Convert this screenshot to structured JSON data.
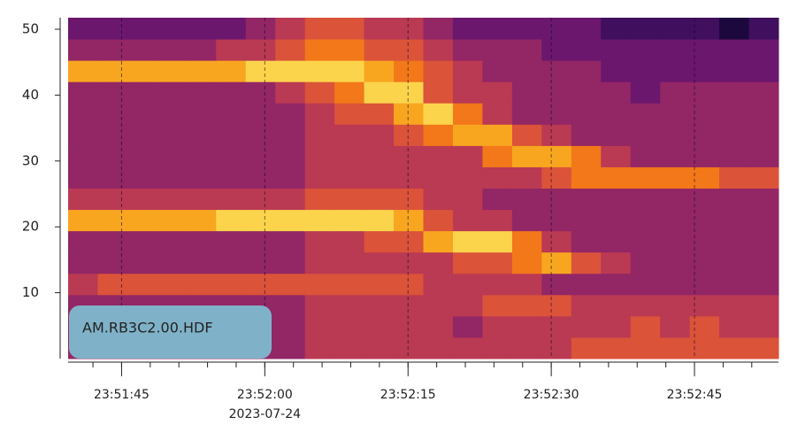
{
  "chart_data": {
    "type": "spectrogram",
    "annotation": "AM.RB3C2.00.HDF",
    "offset_label": "2023-07-24",
    "xlim": [
      85899.4,
      85973.8
    ],
    "xticks": [
      {
        "value": 85905,
        "label": "23:51:45"
      },
      {
        "value": 85920,
        "label": "23:52:00"
      },
      {
        "value": 85935,
        "label": "23:52:15"
      },
      {
        "value": 85950,
        "label": "23:52:30"
      },
      {
        "value": 85965,
        "label": "23:52:45"
      }
    ],
    "xminorticks": [
      85902,
      85905,
      85908,
      85911,
      85914,
      85917,
      85920,
      85923,
      85926,
      85929,
      85932,
      85935,
      85938,
      85941,
      85944,
      85947,
      85950,
      85953,
      85956,
      85959,
      85962,
      85965,
      85968,
      85971
    ],
    "ylim": [
      0,
      51.75
    ],
    "yticks": [
      10,
      20,
      30,
      40,
      50
    ],
    "grid": true,
    "colormap": "inferno",
    "zlim": [
      0,
      10
    ],
    "z": [
      [
        4,
        4,
        4,
        4,
        4,
        4,
        4,
        4,
        5,
        5,
        5,
        5,
        5,
        5,
        5,
        5,
        5,
        6,
        6,
        6,
        6,
        6,
        6,
        6
      ],
      [
        4,
        4,
        4,
        4,
        4,
        4,
        4,
        4,
        5,
        5,
        5,
        5,
        5,
        4,
        5,
        5,
        5,
        5,
        5,
        6,
        5,
        6,
        5,
        5
      ],
      [
        4,
        4,
        4,
        4,
        4,
        4,
        4,
        4,
        5,
        5,
        5,
        5,
        5,
        5,
        6,
        6,
        6,
        5,
        5,
        5,
        5,
        5,
        5,
        5
      ],
      [
        5,
        6,
        6,
        6,
        6,
        6,
        6,
        6,
        6,
        6,
        6,
        6,
        5,
        5,
        5,
        5,
        4,
        4,
        4,
        4,
        4,
        4,
        4,
        4
      ],
      [
        4,
        4,
        4,
        4,
        4,
        4,
        4,
        4,
        5,
        5,
        5,
        5,
        5,
        6,
        6,
        7,
        8,
        6,
        5,
        4,
        4,
        4,
        4,
        4
      ],
      [
        4,
        4,
        4,
        4,
        4,
        4,
        4,
        4,
        5,
        5,
        6,
        6,
        8,
        9,
        9,
        7,
        5,
        4,
        4,
        4,
        4,
        4,
        4,
        4
      ],
      [
        8,
        8,
        8,
        8,
        8,
        9,
        9,
        9,
        9,
        9,
        9,
        8,
        6,
        5,
        5,
        4,
        4,
        4,
        4,
        4,
        4,
        4,
        4,
        4
      ],
      [
        5,
        5,
        5,
        5,
        5,
        5,
        5,
        5,
        6,
        6,
        6,
        6,
        5,
        5,
        4,
        4,
        4,
        4,
        4,
        4,
        4,
        4,
        4,
        4
      ],
      [
        4,
        4,
        4,
        4,
        4,
        4,
        4,
        4,
        5,
        5,
        5,
        5,
        5,
        5,
        5,
        5,
        6,
        7,
        7,
        7,
        7,
        7,
        6,
        6
      ],
      [
        4,
        4,
        4,
        4,
        4,
        4,
        4,
        4,
        5,
        5,
        5,
        5,
        5,
        5,
        7,
        8,
        8,
        7,
        5,
        4,
        4,
        4,
        4,
        4
      ],
      [
        4,
        4,
        4,
        4,
        4,
        4,
        4,
        4,
        5,
        5,
        5,
        6,
        7,
        8,
        8,
        6,
        5,
        4,
        4,
        4,
        4,
        4,
        4,
        4
      ],
      [
        4,
        4,
        4,
        4,
        4,
        4,
        4,
        4,
        5,
        6,
        6,
        8,
        9,
        7,
        5,
        4,
        4,
        4,
        4,
        4,
        4,
        4,
        4,
        4
      ],
      [
        4,
        4,
        4,
        4,
        4,
        4,
        4,
        5,
        6,
        7,
        9,
        9,
        6,
        5,
        5,
        4,
        4,
        4,
        4,
        3,
        4,
        4,
        4,
        4
      ],
      [
        8,
        8,
        8,
        8,
        8,
        8,
        9,
        9,
        9,
        9,
        8,
        7,
        6,
        5,
        4,
        4,
        4,
        4,
        3,
        3,
        3,
        3,
        3,
        3
      ],
      [
        4,
        4,
        4,
        4,
        4,
        5,
        5,
        6,
        7,
        7,
        6,
        6,
        5,
        4,
        4,
        4,
        3,
        3,
        3,
        3,
        3,
        3,
        3,
        3
      ],
      [
        3,
        3,
        3,
        3,
        3,
        3,
        4,
        5,
        6,
        6,
        5,
        5,
        4,
        3,
        3,
        3,
        3,
        3,
        2,
        2,
        2,
        2,
        1,
        2
      ]
    ]
  }
}
